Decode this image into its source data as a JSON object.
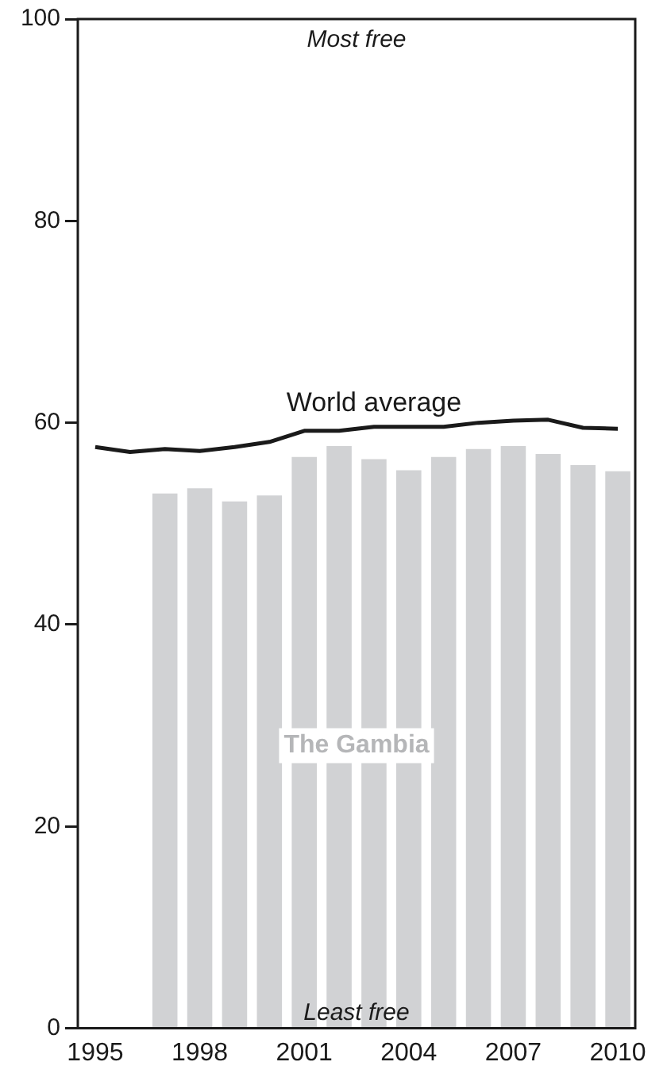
{
  "chart_data": {
    "type": "bar",
    "categories": [
      "1995",
      null,
      null,
      "1998",
      null,
      null,
      "2001",
      null,
      null,
      "2004",
      null,
      null,
      "2007",
      null,
      null,
      "2010"
    ],
    "series": [
      {
        "name": "The Gambia",
        "color": "#d1d2d4",
        "values": [
          null,
          null,
          53.0,
          53.5,
          52.2,
          52.8,
          56.6,
          57.7,
          56.4,
          55.3,
          56.6,
          57.4,
          57.7,
          56.9,
          55.8,
          55.2
        ]
      },
      {
        "name": "World average",
        "type": "line",
        "color": "#1a1a1a",
        "values": [
          57.6,
          57.1,
          57.4,
          57.2,
          57.6,
          58.1,
          59.2,
          59.2,
          59.6,
          59.6,
          59.6,
          60.0,
          60.2,
          60.3,
          59.5,
          59.4
        ]
      }
    ],
    "ylim": [
      0,
      100
    ],
    "yticks": [
      0,
      20,
      40,
      60,
      80,
      100
    ],
    "grid": false,
    "legend": false,
    "marker": "none",
    "line_style": "solid",
    "annotations": [
      "Most free",
      "Least free"
    ]
  }
}
